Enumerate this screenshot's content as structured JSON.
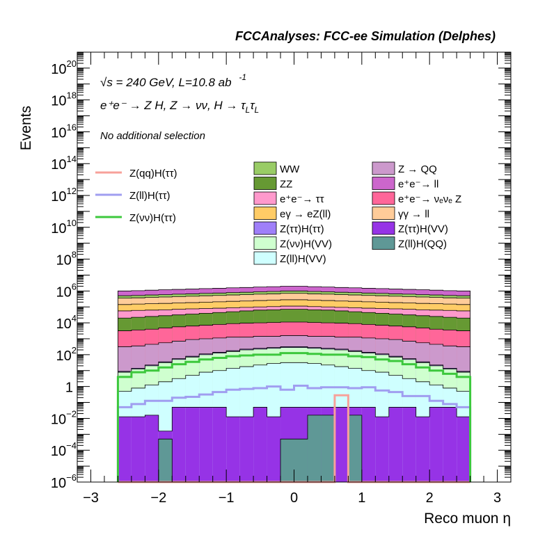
{
  "chart_data": {
    "type": "area",
    "title": "FCCAnalyses: FCC-ee Simulation (Delphes)",
    "xlabel": "Reco muon η",
    "ylabel": "Events",
    "yscale": "log",
    "xlim": [
      -3.2,
      3.2
    ],
    "ylim_exponent": [
      -6,
      21
    ],
    "xticks": [
      {
        "v": -3,
        "label": "−3"
      },
      {
        "v": -2,
        "label": "−2"
      },
      {
        "v": -1,
        "label": "−1"
      },
      {
        "v": 0,
        "label": "0"
      },
      {
        "v": 1,
        "label": "1"
      },
      {
        "v": 2,
        "label": "2"
      },
      {
        "v": 3,
        "label": "3"
      }
    ],
    "yticks": [
      {
        "e": -6,
        "label": "10",
        "sup": "−6"
      },
      {
        "e": -4,
        "label": "10",
        "sup": "−4"
      },
      {
        "e": -2,
        "label": "10",
        "sup": "−2"
      },
      {
        "e": 0,
        "label": "1",
        "sup": ""
      },
      {
        "e": 2,
        "label": "10",
        "sup": "2"
      },
      {
        "e": 4,
        "label": "10",
        "sup": "4"
      },
      {
        "e": 6,
        "label": "10",
        "sup": "6"
      },
      {
        "e": 8,
        "label": "10",
        "sup": "8"
      },
      {
        "e": 10,
        "label": "10",
        "sup": "10"
      },
      {
        "e": 12,
        "label": "10",
        "sup": "12"
      },
      {
        "e": 14,
        "label": "10",
        "sup": "14"
      },
      {
        "e": 16,
        "label": "10",
        "sup": "16"
      },
      {
        "e": 18,
        "label": "10",
        "sup": "18"
      },
      {
        "e": 20,
        "label": "10",
        "sup": "20"
      }
    ],
    "annotations": {
      "energy": "√s = 240 GeV, L=10.8 ab",
      "energy_sup": "-1",
      "process": "e⁺e⁻ → Z H, Z → νν, H → τ",
      "process_sub1": "L",
      "process_tau2": "τ",
      "process_sub2": "L",
      "selection": "No additional selection"
    },
    "bin_edges": [
      -2.6,
      -2.4,
      -2.2,
      -2.0,
      -1.8,
      -1.6,
      -1.4,
      -1.2,
      -1.0,
      -0.8,
      -0.6,
      -0.4,
      -0.2,
      0.0,
      0.2,
      0.4,
      0.6,
      0.8,
      1.0,
      1.2,
      1.4,
      1.6,
      1.8,
      2.0,
      2.2,
      2.4,
      2.6
    ],
    "stacked_series": [
      {
        "name": "Z(ll)H(QQ)",
        "label": "Z(ll)H(QQ)",
        "color": "#5f9896",
        "log10": [
          -6,
          -6,
          -6,
          -3.3,
          -6,
          -6,
          -6,
          -6,
          -6,
          -6,
          -6,
          -6,
          -3.3,
          -3.3,
          -1.8,
          -1.8,
          -6,
          -1.8,
          -6,
          -6,
          -6,
          -6,
          -6,
          -6,
          -6,
          -6
        ]
      },
      {
        "name": "Z(ττ)H(VV)",
        "label": "Z(ττ)H(VV)",
        "color": "#9633e6",
        "log10": [
          -1.9,
          -1.9,
          -1.8,
          -2.8,
          -1.3,
          -1.3,
          -1.3,
          -1.3,
          -1.9,
          -1.9,
          -1.3,
          -1.9,
          -1.3,
          -1.3,
          -1.3,
          -1.3,
          -1.3,
          -1.3,
          -1.3,
          -1.9,
          -1.3,
          -1.3,
          -1.9,
          -1.3,
          -1.3,
          -1.9
        ]
      },
      {
        "name": "Z(ll)H(VV)",
        "label": "Z(ll)H(VV)",
        "color": "#cfffff",
        "log10": [
          -0.3,
          -0.1,
          0.1,
          0.3,
          0.5,
          0.7,
          0.9,
          1.0,
          1.15,
          1.25,
          1.35,
          1.45,
          1.5,
          1.5,
          1.45,
          1.35,
          1.25,
          1.15,
          1.0,
          0.9,
          0.7,
          0.5,
          0.3,
          0.1,
          -0.1,
          -0.3
        ]
      },
      {
        "name": "Z(νν)H(VV)",
        "label": "Z(νν)H(VV)",
        "color": "#cfffcf",
        "log10": [
          0.9,
          1.1,
          1.3,
          1.5,
          1.7,
          1.85,
          2.0,
          2.1,
          2.2,
          2.3,
          2.35,
          2.4,
          2.45,
          2.45,
          2.4,
          2.35,
          2.3,
          2.2,
          2.1,
          2.0,
          1.85,
          1.7,
          1.5,
          1.3,
          1.1,
          0.9
        ]
      },
      {
        "name": "Z(ττ)H(ττ)",
        "label": "Z(ττ)H(ττ)",
        "color": "#9f7ff9",
        "log10": [
          0.95,
          1.15,
          1.35,
          1.55,
          1.75,
          1.9,
          2.05,
          2.15,
          2.25,
          2.35,
          2.4,
          2.45,
          2.5,
          2.5,
          2.45,
          2.4,
          2.35,
          2.25,
          2.15,
          2.05,
          1.9,
          1.75,
          1.55,
          1.35,
          1.15,
          0.95
        ]
      },
      {
        "name": "Z → QQ",
        "label": "Z → QQ",
        "color": "#cc99cc",
        "log10": [
          2.5,
          2.55,
          2.65,
          2.75,
          2.85,
          2.95,
          3.0,
          3.05,
          3.1,
          3.1,
          3.15,
          3.15,
          3.2,
          3.2,
          3.15,
          3.15,
          3.1,
          3.1,
          3.05,
          3.0,
          2.95,
          2.85,
          2.75,
          2.65,
          2.55,
          2.5
        ]
      },
      {
        "name": "e⁺e⁻ → νₑνₑ Z",
        "label": "e⁺e⁻ → νₑνₑ Z",
        "color": "#ff6699",
        "log10": [
          3.5,
          3.55,
          3.6,
          3.68,
          3.75,
          3.8,
          3.85,
          3.9,
          3.95,
          3.98,
          4.0,
          4.02,
          4.05,
          4.05,
          4.02,
          4.0,
          3.98,
          3.95,
          3.9,
          3.85,
          3.8,
          3.75,
          3.68,
          3.6,
          3.55,
          3.5
        ]
      },
      {
        "name": "ZZ",
        "label": "ZZ",
        "color": "#669933",
        "log10": [
          4.3,
          4.35,
          4.4,
          4.45,
          4.5,
          4.55,
          4.6,
          4.65,
          4.7,
          4.75,
          4.8,
          4.82,
          4.85,
          4.85,
          4.82,
          4.8,
          4.75,
          4.7,
          4.65,
          4.6,
          4.55,
          4.5,
          4.45,
          4.4,
          4.35,
          4.3
        ]
      },
      {
        "name": "e⁺e⁻ → ττ",
        "label": "e⁺e⁻ → ττ",
        "color": "#ff99cc",
        "log10": [
          4.75,
          4.78,
          4.8,
          4.82,
          4.85,
          4.88,
          4.9,
          4.92,
          4.95,
          4.97,
          5.0,
          5.02,
          5.05,
          5.05,
          5.02,
          5.0,
          4.97,
          4.95,
          4.92,
          4.9,
          4.88,
          4.85,
          4.82,
          4.8,
          4.78,
          4.75
        ]
      },
      {
        "name": "eγ → eZ(ll)",
        "label": "eγ → eZ(ll)",
        "color": "#ffcc66",
        "log10": [
          5.15,
          5.18,
          5.2,
          5.22,
          5.25,
          5.27,
          5.3,
          5.32,
          5.35,
          5.37,
          5.4,
          5.42,
          5.45,
          5.45,
          5.42,
          5.4,
          5.37,
          5.35,
          5.32,
          5.3,
          5.27,
          5.25,
          5.22,
          5.2,
          5.18,
          5.15
        ]
      },
      {
        "name": "γγ → ll",
        "label": "γγ → ll",
        "color": "#ffcc99",
        "log10": [
          5.55,
          5.57,
          5.6,
          5.62,
          5.65,
          5.67,
          5.7,
          5.72,
          5.75,
          5.77,
          5.8,
          5.82,
          5.85,
          5.85,
          5.82,
          5.8,
          5.77,
          5.75,
          5.72,
          5.7,
          5.67,
          5.65,
          5.62,
          5.6,
          5.57,
          5.55
        ]
      },
      {
        "name": "WW",
        "label": "WW",
        "color": "#99cc66",
        "log10": [
          5.7,
          5.72,
          5.75,
          5.77,
          5.8,
          5.82,
          5.85,
          5.87,
          5.9,
          5.92,
          5.95,
          5.97,
          6.0,
          6.0,
          5.97,
          5.95,
          5.92,
          5.9,
          5.87,
          5.85,
          5.82,
          5.8,
          5.77,
          5.75,
          5.72,
          5.7
        ]
      },
      {
        "name": "e⁺e⁻ → ll",
        "label": "e⁺e⁻ → ll",
        "color": "#cc66cc",
        "log10": [
          6.0,
          6.02,
          6.05,
          6.08,
          6.1,
          6.12,
          6.15,
          6.17,
          6.2,
          6.22,
          6.25,
          6.27,
          6.3,
          6.3,
          6.27,
          6.25,
          6.22,
          6.2,
          6.17,
          6.15,
          6.12,
          6.1,
          6.08,
          6.05,
          6.02,
          6.0
        ]
      }
    ],
    "line_series": [
      {
        "name": "Z(qq)H(ττ)",
        "label": "Z(qq)H(ττ)",
        "color": "#f7a19a",
        "log10": [
          -6,
          -6,
          -6,
          -6,
          -6,
          -6,
          -6,
          -6,
          -6,
          -6,
          -6,
          -6,
          -6,
          -6,
          -6,
          -6,
          -0.55,
          -6,
          -6,
          -6,
          -6,
          -6,
          -6,
          -6,
          -6,
          -6
        ]
      },
      {
        "name": "Z(ll)H(ττ)",
        "label": "Z(ll)H(ττ)",
        "color": "#a09ef0",
        "log10": [
          -1.3,
          -1.1,
          -0.9,
          -0.9,
          -0.7,
          -0.65,
          -0.5,
          -0.35,
          -0.2,
          -0.15,
          -0.1,
          0.0,
          -0.2,
          0.05,
          -0.1,
          -0.05,
          -0.05,
          -0.1,
          -0.05,
          -0.25,
          -0.35,
          -0.6,
          -0.6,
          -0.9,
          -1.1,
          -1.3
        ]
      },
      {
        "name": "Z(νν)H(ττ)",
        "label": "Z(νν)H(ττ)",
        "color": "#3cc83c",
        "log10": [
          0.6,
          0.9,
          1.0,
          1.2,
          1.4,
          1.55,
          1.7,
          1.8,
          1.9,
          1.95,
          2.0,
          2.0,
          2.1,
          2.1,
          2.05,
          2.0,
          2.0,
          1.9,
          1.85,
          1.7,
          1.6,
          1.4,
          1.2,
          1.0,
          0.8,
          0.6
        ]
      }
    ],
    "legend_lines": [
      "Z(qq)H(ττ)",
      "Z(ll)H(ττ)",
      "Z(νν)H(ττ)"
    ],
    "legend_col1": [
      "WW",
      "ZZ",
      "e⁺e⁻→ ττ",
      "eγ → eZ(ll)",
      "Z(ττ)H(ττ)",
      "Z(νν)H(VV)",
      "Z(ll)H(VV)"
    ],
    "legend_col2": [
      "Z → QQ",
      "e⁺e⁻→ ll",
      "e⁺e⁻→ νₑνₑ Z",
      "γγ → ll",
      "Z(ττ)H(VV)",
      "Z(ll)H(QQ)"
    ],
    "legend_col1_colors": [
      "#99cc66",
      "#669933",
      "#ff99cc",
      "#ffcc66",
      "#9f7ff9",
      "#cfffcf",
      "#cfffff"
    ],
    "legend_col2_colors": [
      "#cc99cc",
      "#cc66cc",
      "#ff6699",
      "#ffcc99",
      "#9633e6",
      "#5f9896"
    ],
    "legend_placement": "upper-center",
    "grid": false
  }
}
